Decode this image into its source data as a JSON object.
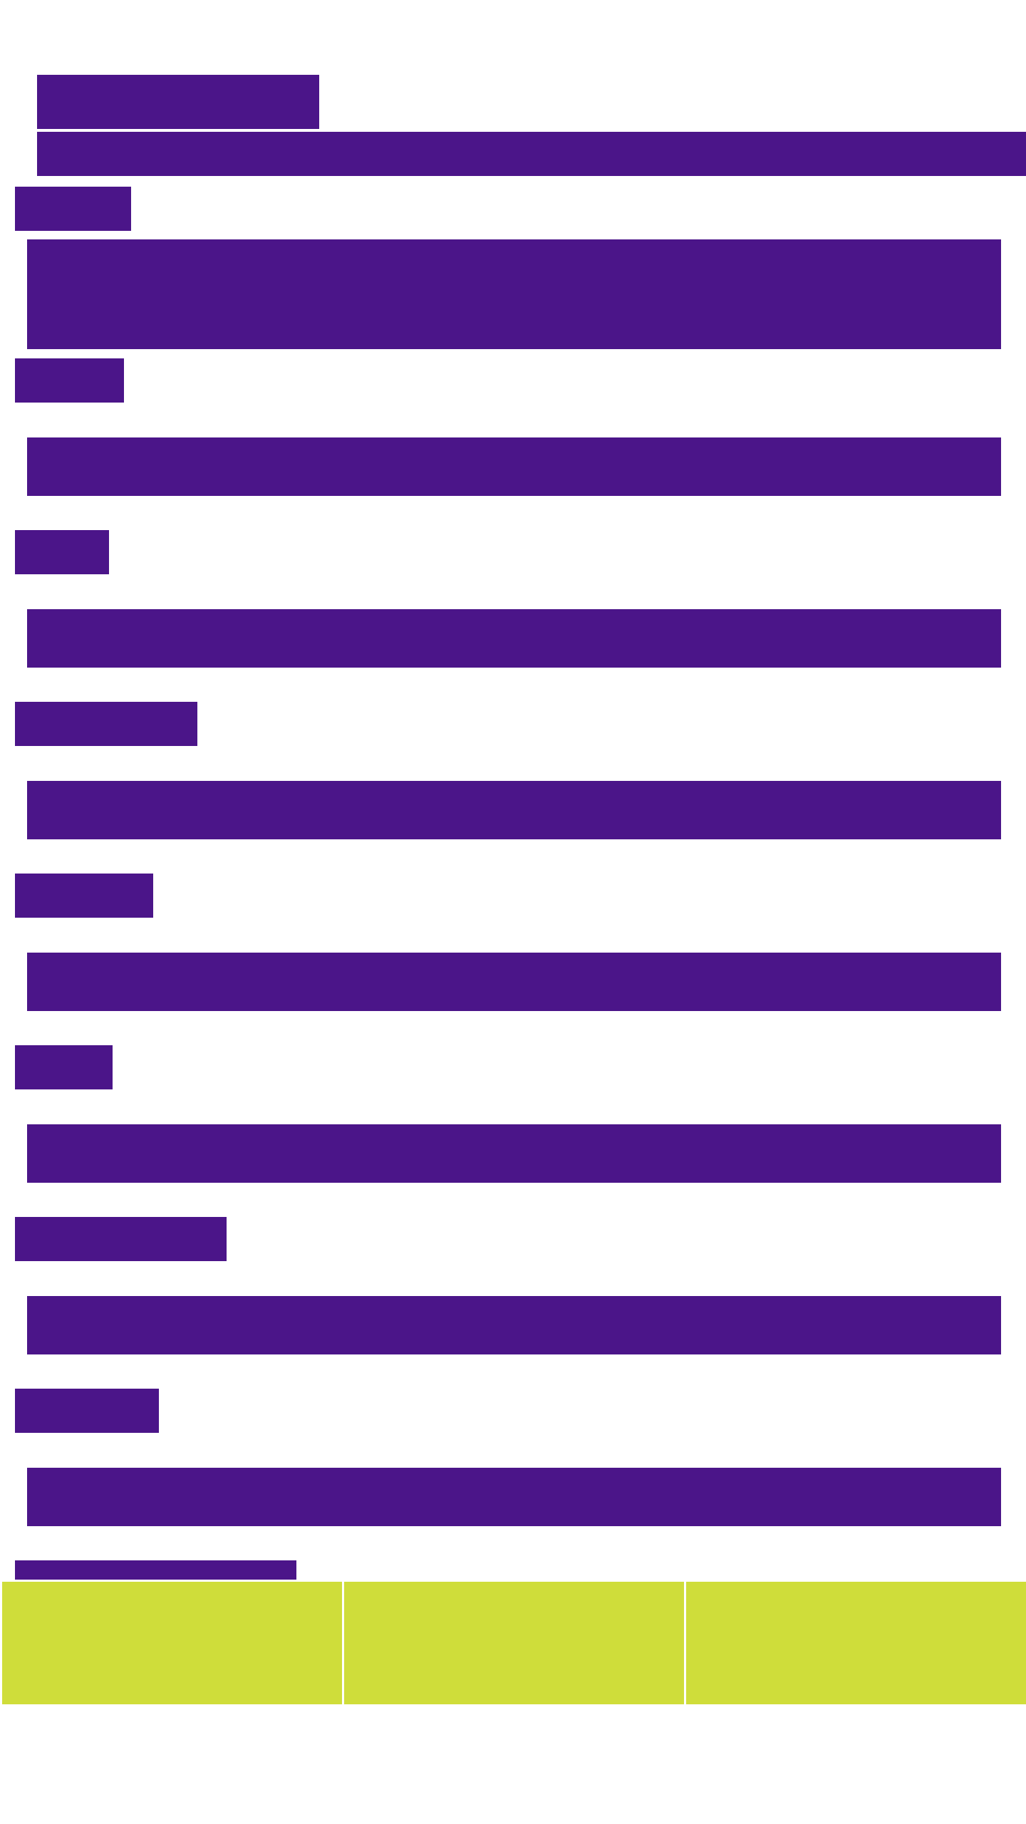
{
  "colors": {
    "page_background": "#ffffff",
    "block_fill": "#4b1589",
    "tile_fill": "#cfdd3a",
    "tile_separator": "#ffffff"
  }
}
